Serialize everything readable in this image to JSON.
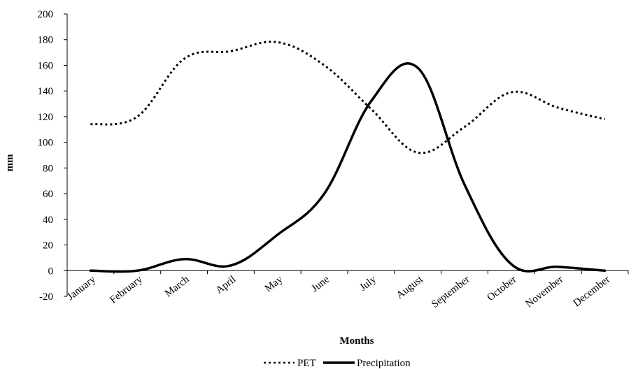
{
  "chart_data": {
    "type": "line",
    "xlabel": "Months",
    "ylabel": "mm",
    "ylim": [
      -20,
      200
    ],
    "yticks": [
      -20,
      0,
      20,
      40,
      60,
      80,
      100,
      120,
      140,
      160,
      180,
      200
    ],
    "categories": [
      "January",
      "February",
      "March",
      "April",
      "May",
      "June",
      "July",
      "August",
      "September",
      "October",
      "November",
      "December"
    ],
    "series": [
      {
        "name": "PET",
        "style": "dotted",
        "color": "#000000",
        "values": [
          114,
          120,
          165,
          171,
          178,
          160,
          126,
          92,
          112,
          139,
          127,
          118
        ]
      },
      {
        "name": "Precipitation",
        "style": "solid",
        "color": "#000000",
        "values": [
          0,
          0,
          9,
          4,
          28,
          60,
          132,
          158,
          67,
          5,
          3,
          0
        ]
      }
    ],
    "legend_position": "bottom-center",
    "grid": false
  }
}
